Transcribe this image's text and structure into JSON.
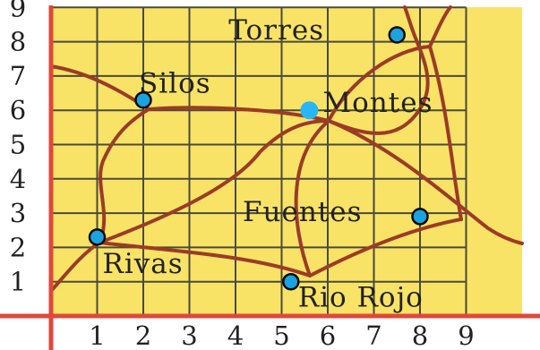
{
  "map": {
    "axes": {
      "x_ticks": [
        "1",
        "2",
        "3",
        "4",
        "5",
        "6",
        "7",
        "8",
        "9"
      ],
      "y_ticks": [
        "1",
        "2",
        "3",
        "4",
        "5",
        "6",
        "7",
        "8",
        "9"
      ],
      "xlim": [
        0,
        9
      ],
      "ylim": [
        0,
        9
      ],
      "grid": true
    },
    "towns": [
      {
        "id": "torres",
        "label": "Torres",
        "x": 7.5,
        "y": 8.2
      },
      {
        "id": "silos",
        "label": "Silos",
        "x": 2.0,
        "y": 6.3
      },
      {
        "id": "montes",
        "label": "Montes",
        "x": 5.6,
        "y": 6.0
      },
      {
        "id": "fuentes",
        "label": "Fuentes",
        "x": 8.0,
        "y": 2.9
      },
      {
        "id": "rivas",
        "label": "Rivas",
        "x": 1.0,
        "y": 2.3
      },
      {
        "id": "rio-rojo",
        "label": "Rio Rojo",
        "x": 5.2,
        "y": 1.0
      }
    ],
    "colors": {
      "background": "#f8e366",
      "grid": "#4a4a3a",
      "axis": "#e0483a",
      "road": "#9c3b27",
      "town_marker": "#1ba3e0",
      "highlight_marker": "#29b6f6"
    }
  }
}
